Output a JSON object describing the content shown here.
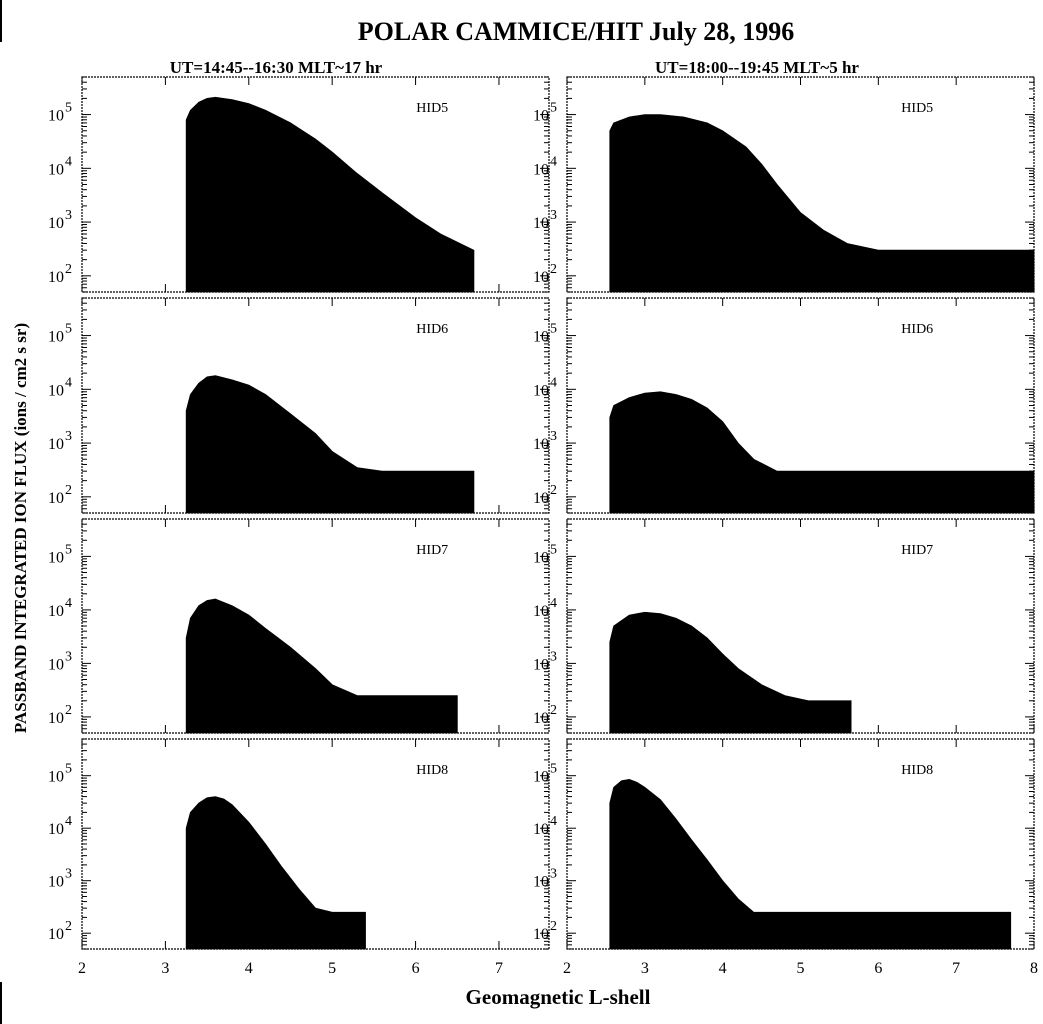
{
  "chart_data": {
    "type": "area",
    "title": "POLAR CAMMICE/HIT July 28, 1996",
    "ylabel": "PASSBAND INTEGRATED ION FLUX  (ions / cm2 s sr)",
    "xlabel": "Geomagnetic L-shell",
    "y_scale": "log",
    "ylim": [
      50,
      500000
    ],
    "y_tick_values": [
      100,
      1000,
      10000,
      100000
    ],
    "y_tick_labels": [
      {
        "base": "10",
        "exp": "2"
      },
      {
        "base": "10",
        "exp": "3"
      },
      {
        "base": "10",
        "exp": "4"
      },
      {
        "base": "10",
        "exp": "5"
      }
    ],
    "columns": [
      {
        "subtitle": "UT=14:45--16:30  MLT~17 hr",
        "xlim": [
          2,
          7.6
        ],
        "x_ticks": [
          2,
          3,
          4,
          5,
          6,
          7
        ],
        "x_tick_labels": [
          "2",
          "3",
          "4",
          "5",
          "6",
          "7"
        ]
      },
      {
        "subtitle": "UT=18:00--19:45  MLT~5 hr",
        "xlim": [
          2,
          8
        ],
        "x_ticks": [
          2,
          3,
          4,
          5,
          6,
          7,
          8
        ],
        "x_tick_labels": [
          "2",
          "3",
          "4",
          "5",
          "6",
          "7",
          "8"
        ]
      }
    ],
    "panels": [
      {
        "row": 0,
        "col": 0,
        "label": "HID5",
        "x": [
          3.25,
          3.3,
          3.4,
          3.5,
          3.6,
          3.8,
          4.0,
          4.2,
          4.5,
          4.8,
          5.0,
          5.3,
          5.6,
          6.0,
          6.3,
          6.7
        ],
        "y": [
          80000,
          120000,
          170000,
          200000,
          210000,
          190000,
          160000,
          120000,
          70000,
          35000,
          20000,
          8000,
          3500,
          1200,
          600,
          300
        ]
      },
      {
        "row": 0,
        "col": 1,
        "label": "HID5",
        "x": [
          2.55,
          2.6,
          2.8,
          3.0,
          3.2,
          3.5,
          3.8,
          4.0,
          4.3,
          4.5,
          4.7,
          5.0,
          5.3,
          5.6,
          6.0,
          7.0,
          8.0
        ],
        "y": [
          50000,
          70000,
          90000,
          100000,
          100000,
          90000,
          70000,
          50000,
          25000,
          12000,
          5000,
          1500,
          700,
          400,
          300,
          300,
          300
        ]
      },
      {
        "row": 1,
        "col": 0,
        "label": "HID6",
        "x": [
          3.25,
          3.3,
          3.4,
          3.5,
          3.6,
          3.8,
          4.0,
          4.2,
          4.5,
          4.8,
          5.0,
          5.3,
          5.6,
          6.0,
          6.4,
          6.7
        ],
        "y": [
          4000,
          8000,
          13000,
          17000,
          18000,
          15000,
          12000,
          8000,
          3500,
          1500,
          700,
          350,
          300,
          300,
          300,
          300
        ]
      },
      {
        "row": 1,
        "col": 1,
        "label": "HID6",
        "x": [
          2.55,
          2.6,
          2.8,
          3.0,
          3.2,
          3.4,
          3.6,
          3.8,
          4.0,
          4.2,
          4.4,
          4.7,
          5.0,
          6.0,
          7.0,
          8.0
        ],
        "y": [
          3000,
          5000,
          7000,
          8500,
          9000,
          8000,
          6500,
          4500,
          2500,
          1000,
          500,
          300,
          300,
          300,
          300,
          300
        ]
      },
      {
        "row": 2,
        "col": 0,
        "label": "HID7",
        "x": [
          3.25,
          3.3,
          3.4,
          3.5,
          3.6,
          3.8,
          4.0,
          4.2,
          4.5,
          4.8,
          5.0,
          5.3,
          5.6,
          6.0,
          6.5
        ],
        "y": [
          3000,
          7000,
          12000,
          15000,
          16000,
          12000,
          8000,
          4500,
          2000,
          800,
          400,
          250,
          250,
          250,
          250
        ]
      },
      {
        "row": 2,
        "col": 1,
        "label": "HID7",
        "x": [
          2.55,
          2.6,
          2.8,
          3.0,
          3.2,
          3.4,
          3.6,
          3.8,
          4.0,
          4.2,
          4.5,
          4.8,
          5.1,
          5.65
        ],
        "y": [
          2500,
          5000,
          8000,
          9000,
          8500,
          7000,
          5000,
          3000,
          1500,
          800,
          400,
          250,
          200,
          200
        ]
      },
      {
        "row": 3,
        "col": 0,
        "label": "HID8",
        "x": [
          3.25,
          3.3,
          3.4,
          3.5,
          3.6,
          3.7,
          3.8,
          4.0,
          4.2,
          4.4,
          4.6,
          4.8,
          5.0,
          5.4
        ],
        "y": [
          10000,
          20000,
          30000,
          38000,
          40000,
          36000,
          28000,
          13000,
          5000,
          1800,
          700,
          300,
          250,
          250
        ]
      },
      {
        "row": 3,
        "col": 1,
        "label": "HID8",
        "x": [
          2.55,
          2.6,
          2.7,
          2.8,
          2.9,
          3.0,
          3.2,
          3.4,
          3.6,
          3.8,
          4.0,
          4.2,
          4.4,
          4.7,
          5.2,
          7.7
        ],
        "y": [
          30000,
          60000,
          80000,
          85000,
          75000,
          60000,
          35000,
          15000,
          6000,
          2500,
          1000,
          450,
          250,
          250,
          250,
          250
        ]
      }
    ]
  }
}
